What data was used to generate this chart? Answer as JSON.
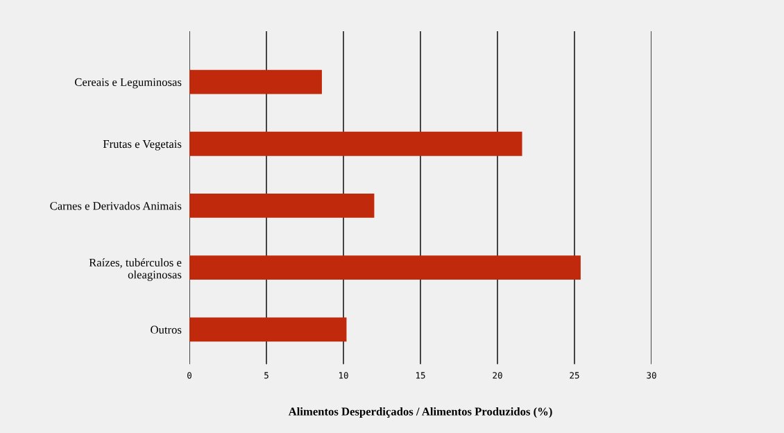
{
  "chart_data": {
    "type": "bar",
    "orientation": "horizontal",
    "xlabel": "Alimentos Desperdiçados / Alimentos Produzidos (%)",
    "categories": [
      "Cereais e Leguminosas",
      "Frutas e Vegetais",
      "Carnes e Derivados Animais",
      "Raízes, tubérculos e\noleaginosas",
      "Outros"
    ],
    "values": [
      8.6,
      21.6,
      12.0,
      25.4,
      10.2
    ],
    "color": "#c0290b",
    "xlim": [
      0,
      30
    ],
    "xticks": [
      0,
      5,
      10,
      15,
      20,
      25,
      30
    ],
    "grid": "x",
    "legend": false
  }
}
